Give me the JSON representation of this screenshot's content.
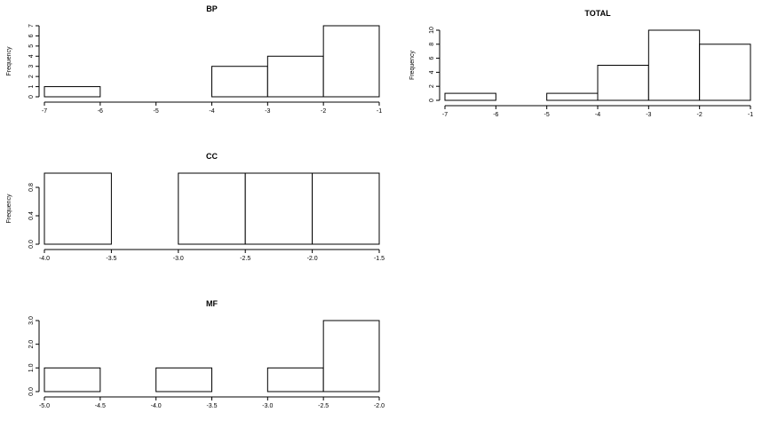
{
  "chart_data": [
    {
      "type": "bar",
      "title": "BP",
      "ylabel": "Frequency",
      "bins": [
        [
          -7,
          -6
        ],
        [
          -6,
          -5
        ],
        [
          -5,
          -4
        ],
        [
          -4,
          -3
        ],
        [
          -3,
          -2
        ],
        [
          -2,
          -1
        ]
      ],
      "values": [
        1,
        0,
        0,
        3,
        4,
        7
      ],
      "xlim": [
        -7,
        -1
      ],
      "ylim": [
        0,
        7
      ],
      "xticks": [
        -7,
        -6,
        -5,
        -4,
        -3,
        -2,
        -1
      ],
      "xtick_labels": [
        "-7",
        "-6",
        "-5",
        "-4",
        "-3",
        "-2",
        "-1"
      ],
      "yticks": [
        0,
        1,
        2,
        3,
        4,
        5,
        6,
        7
      ],
      "ytick_labels": [
        "0",
        "1",
        "2",
        "3",
        "4",
        "5",
        "6",
        "7"
      ]
    },
    {
      "type": "bar",
      "title": "TOTAL",
      "ylabel": "Frequency",
      "bins": [
        [
          -7,
          -6
        ],
        [
          -6,
          -5
        ],
        [
          -5,
          -4
        ],
        [
          -4,
          -3
        ],
        [
          -3,
          -2
        ],
        [
          -2,
          -1
        ]
      ],
      "values": [
        1,
        0,
        1,
        5,
        10,
        8
      ],
      "xlim": [
        -7,
        -1
      ],
      "ylim": [
        0,
        10
      ],
      "xticks": [
        -7,
        -6,
        -5,
        -4,
        -3,
        -2,
        -1
      ],
      "xtick_labels": [
        "-7",
        "-6",
        "-5",
        "-4",
        "-3",
        "-2",
        "-1"
      ],
      "yticks": [
        0,
        2,
        4,
        6,
        8,
        10
      ],
      "ytick_labels": [
        "0",
        "2",
        "4",
        "6",
        "8",
        "10"
      ]
    },
    {
      "type": "bar",
      "title": "CC",
      "ylabel": "Frequency",
      "bins": [
        [
          -4.0,
          -3.5
        ],
        [
          -3.5,
          -3.0
        ],
        [
          -3.0,
          -2.5
        ],
        [
          -2.5,
          -2.0
        ],
        [
          -2.0,
          -1.5
        ]
      ],
      "values": [
        1,
        0,
        1,
        1,
        1
      ],
      "xlim": [
        -4.0,
        -1.5
      ],
      "ylim": [
        0,
        1
      ],
      "xticks": [
        -4.0,
        -3.5,
        -3.0,
        -2.5,
        -2.0,
        -1.5
      ],
      "xtick_labels": [
        "-4.0",
        "-3.5",
        "-3.0",
        "-2.5",
        "-2.0",
        "-1.5"
      ],
      "yticks": [
        0,
        0.4,
        0.8
      ],
      "ytick_labels": [
        "0.0",
        "0.4",
        "0.8"
      ]
    },
    {
      "type": "bar",
      "title": "MF",
      "ylabel": "",
      "bins": [
        [
          -5.0,
          -4.5
        ],
        [
          -4.5,
          -4.0
        ],
        [
          -4.0,
          -3.5
        ],
        [
          -3.5,
          -3.0
        ],
        [
          -3.0,
          -2.5
        ],
        [
          -2.5,
          -2.0
        ]
      ],
      "values": [
        1,
        0,
        1,
        0,
        1,
        3
      ],
      "xlim": [
        -5.0,
        -2.0
      ],
      "ylim": [
        0,
        3
      ],
      "xticks": [
        -5.0,
        -4.5,
        -4.0,
        -3.5,
        -3.0,
        -2.5,
        -2.0
      ],
      "xtick_labels": [
        "-5.0",
        "-4.5",
        "-4.0",
        "-3.5",
        "-3.0",
        "-2.5",
        "-2.0"
      ],
      "yticks": [
        0,
        1,
        2,
        3
      ],
      "ytick_labels": [
        "0.0",
        "1.0",
        "2.0",
        "3.0"
      ]
    }
  ]
}
